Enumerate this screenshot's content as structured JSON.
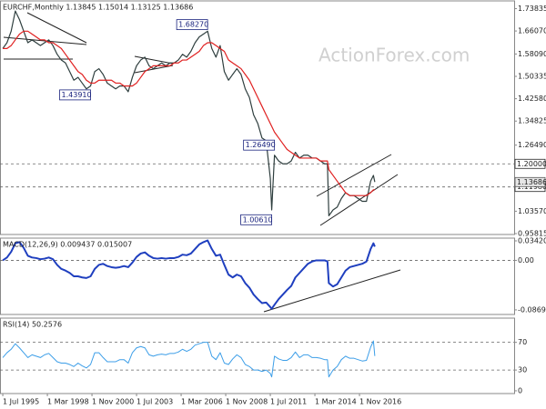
{
  "chart_data": [
    {
      "type": "line",
      "title": "EURCHF,Monthly  1.13845 1.15014 1.13125 1.13686",
      "watermark": "ActionForex.com",
      "xlim": [
        "1995-05",
        "2026-02"
      ],
      "x": [
        "1995-07",
        "1995-10",
        "1996-01",
        "1996-04",
        "1996-07",
        "1996-10",
        "1997-01",
        "1997-04",
        "1997-07",
        "1997-10",
        "1998-01",
        "1998-04",
        "1998-07",
        "1998-10",
        "1999-01",
        "1999-04",
        "1999-07",
        "1999-10",
        "2000-01",
        "2000-04",
        "2000-07",
        "2000-10",
        "2001-01",
        "2001-04",
        "2001-07",
        "2001-10",
        "2002-01",
        "2002-04",
        "2002-07",
        "2002-10",
        "2003-01",
        "2003-04",
        "2003-07",
        "2003-10",
        "2004-01",
        "2004-04",
        "2004-07",
        "2004-10",
        "2005-01",
        "2005-04",
        "2005-07",
        "2005-10",
        "2006-01",
        "2006-04",
        "2006-07",
        "2006-10",
        "2007-01",
        "2007-04",
        "2007-07",
        "2007-10",
        "2008-01",
        "2008-04",
        "2008-07",
        "2008-10",
        "2009-01",
        "2009-04",
        "2009-07",
        "2009-10",
        "2010-01",
        "2010-04",
        "2010-07",
        "2010-10",
        "2011-01",
        "2011-04",
        "2011-07",
        "2011-08",
        "2011-10",
        "2012-01",
        "2012-04",
        "2012-07",
        "2012-10",
        "2013-01",
        "2013-04",
        "2013-07",
        "2013-10",
        "2014-01",
        "2014-04",
        "2014-07",
        "2014-10",
        "2014-12",
        "2015-01",
        "2015-04",
        "2015-07",
        "2015-10",
        "2016-01",
        "2016-04",
        "2016-07",
        "2016-10",
        "2017-01",
        "2017-04",
        "2017-07",
        "2017-09",
        "2017-10"
      ],
      "ylim": [
        0.955,
        1.765
      ],
      "yticks": [
        1.73835,
        {
          "value": 1.6607,
          "label": "1.66070"
        },
        {
          "value": 1.5809,
          "label": "1.58090"
        },
        1.50335,
        {
          "value": 1.4258,
          "label": "1.42580"
        },
        1.34825,
        {
          "value": 1.2649,
          "label": "1.26490"
        },
        {
          "value": 1.0357,
          "label": "1.03570"
        },
        0.95815
      ],
      "levels": [
        {
          "value": 1.2,
          "label": "1.20000"
        },
        {
          "value": 1.1198,
          "label": "1.11980"
        }
      ],
      "current": {
        "value": 1.13686,
        "label": "1.13686"
      },
      "annotations": [
        {
          "x": "2000-10",
          "value": 1.4391,
          "label": "1.43910"
        },
        {
          "x": "2007-10",
          "value": 1.6827,
          "label": "1.68270"
        },
        {
          "x": "2011-10",
          "value": 1.2649,
          "label": "1.26490"
        },
        {
          "x": "2011-08",
          "value": 1.0061,
          "label": "1.00610"
        }
      ],
      "series": [
        {
          "color": "#2f3f3f",
          "values": [
            1.6,
            1.62,
            1.66,
            1.73,
            1.7,
            1.66,
            1.62,
            1.63,
            1.62,
            1.61,
            1.62,
            1.63,
            1.61,
            1.58,
            1.56,
            1.55,
            1.52,
            1.49,
            1.5,
            1.48,
            1.46,
            1.47,
            1.52,
            1.53,
            1.51,
            1.48,
            1.47,
            1.46,
            1.47,
            1.47,
            1.45,
            1.5,
            1.54,
            1.56,
            1.57,
            1.54,
            1.53,
            1.54,
            1.55,
            1.54,
            1.55,
            1.55,
            1.56,
            1.58,
            1.57,
            1.59,
            1.62,
            1.64,
            1.65,
            1.66,
            1.6,
            1.57,
            1.61,
            1.52,
            1.49,
            1.51,
            1.53,
            1.51,
            1.46,
            1.43,
            1.37,
            1.34,
            1.29,
            1.28,
            1.15,
            1.04,
            1.23,
            1.21,
            1.2,
            1.2,
            1.21,
            1.24,
            1.22,
            1.23,
            1.23,
            1.22,
            1.22,
            1.21,
            1.2,
            1.2,
            1.02,
            1.04,
            1.05,
            1.08,
            1.1,
            1.09,
            1.09,
            1.08,
            1.07,
            1.07,
            1.14,
            1.16,
            1.13686
          ]
        },
        {
          "color": "#e02020",
          "values": [
            1.6,
            1.6,
            1.61,
            1.63,
            1.65,
            1.66,
            1.66,
            1.65,
            1.64,
            1.63,
            1.63,
            1.62,
            1.62,
            1.61,
            1.6,
            1.58,
            1.56,
            1.54,
            1.52,
            1.51,
            1.49,
            1.48,
            1.48,
            1.49,
            1.49,
            1.49,
            1.49,
            1.48,
            1.48,
            1.47,
            1.47,
            1.47,
            1.48,
            1.5,
            1.52,
            1.53,
            1.54,
            1.54,
            1.54,
            1.54,
            1.54,
            1.55,
            1.55,
            1.56,
            1.56,
            1.57,
            1.58,
            1.59,
            1.61,
            1.62,
            1.62,
            1.61,
            1.6,
            1.59,
            1.56,
            1.55,
            1.54,
            1.53,
            1.51,
            1.49,
            1.46,
            1.43,
            1.4,
            1.37,
            1.34,
            1.33,
            1.31,
            1.29,
            1.27,
            1.25,
            1.24,
            1.23,
            1.22,
            1.22,
            1.22,
            1.22,
            1.22,
            1.21,
            1.21,
            1.21,
            1.18,
            1.16,
            1.14,
            1.12,
            1.1,
            1.09,
            1.09,
            1.09,
            1.09,
            1.09,
            1.1,
            1.11,
            1.11
          ]
        }
      ]
    },
    {
      "type": "line",
      "title": "MACD(12,26,9) 0.009437 0.015007",
      "ylim": [
        -0.095,
        0.039
      ],
      "yticks": [
        0.034203,
        {
          "value": 0,
          "label": "0.00"
        },
        -0.086933
      ],
      "levels": [
        0
      ],
      "series": [
        {
          "color": "#1f3fbf",
          "values": [
            0.0,
            0.005,
            0.015,
            0.03,
            0.032,
            0.022,
            0.008,
            0.005,
            0.004,
            0.002,
            0.003,
            0.005,
            0.002,
            -0.008,
            -0.015,
            -0.018,
            -0.022,
            -0.028,
            -0.028,
            -0.03,
            -0.031,
            -0.028,
            -0.015,
            -0.008,
            -0.006,
            -0.01,
            -0.012,
            -0.013,
            -0.012,
            -0.01,
            -0.012,
            -0.004,
            0.006,
            0.012,
            0.014,
            0.008,
            0.004,
            0.003,
            0.004,
            0.003,
            0.004,
            0.004,
            0.006,
            0.01,
            0.009,
            0.012,
            0.02,
            0.028,
            0.032,
            0.035,
            0.02,
            0.008,
            0.01,
            -0.008,
            -0.025,
            -0.03,
            -0.025,
            -0.028,
            -0.04,
            -0.048,
            -0.06,
            -0.068,
            -0.075,
            -0.074,
            -0.082,
            -0.085,
            -0.078,
            -0.068,
            -0.06,
            -0.052,
            -0.045,
            -0.03,
            -0.022,
            -0.014,
            -0.006,
            -0.002,
            0.0,
            0.0,
            0.0,
            -0.002,
            -0.04,
            -0.046,
            -0.042,
            -0.03,
            -0.018,
            -0.012,
            -0.01,
            -0.008,
            -0.006,
            -0.002,
            0.02,
            0.03,
            0.024
          ]
        }
      ]
    },
    {
      "type": "line",
      "title": "RSI(14) 50.2576",
      "ylim": [
        -4,
        105
      ],
      "yticks": [
        70,
        30,
        0
      ],
      "levels": [
        70,
        30
      ],
      "xticks": [
        {
          "value": "1995-07",
          "label": "1 Jul 1995"
        },
        {
          "value": "1998-03",
          "label": "1 Mar 1998"
        },
        {
          "value": "2000-11",
          "label": "1 Nov 2000"
        },
        {
          "value": "2003-07",
          "label": "1 Jul 2003"
        },
        {
          "value": "2006-03",
          "label": "1 Mar 2006"
        },
        {
          "value": "2008-11",
          "label": "1 Nov 2008"
        },
        {
          "value": "2011-07",
          "label": "1 Jul 2011"
        },
        {
          "value": "2014-03",
          "label": "1 Mar 2014"
        },
        {
          "value": "2016-11",
          "label": "1 Nov 2016"
        }
      ],
      "series": [
        {
          "color": "#3c9ee8",
          "values": [
            48,
            55,
            60,
            68,
            62,
            55,
            48,
            52,
            50,
            48,
            52,
            54,
            48,
            42,
            40,
            40,
            38,
            35,
            40,
            36,
            33,
            38,
            55,
            55,
            48,
            42,
            42,
            42,
            45,
            45,
            40,
            55,
            62,
            64,
            62,
            52,
            50,
            52,
            53,
            52,
            54,
            54,
            56,
            60,
            57,
            60,
            66,
            68,
            70,
            70,
            50,
            45,
            55,
            40,
            38,
            46,
            52,
            48,
            38,
            35,
            30,
            30,
            28,
            30,
            25,
            20,
            50,
            46,
            44,
            44,
            48,
            56,
            48,
            52,
            52,
            48,
            48,
            47,
            45,
            45,
            20,
            30,
            35,
            45,
            50,
            47,
            47,
            45,
            43,
            44,
            63,
            72,
            50.2576
          ]
        }
      ]
    }
  ]
}
